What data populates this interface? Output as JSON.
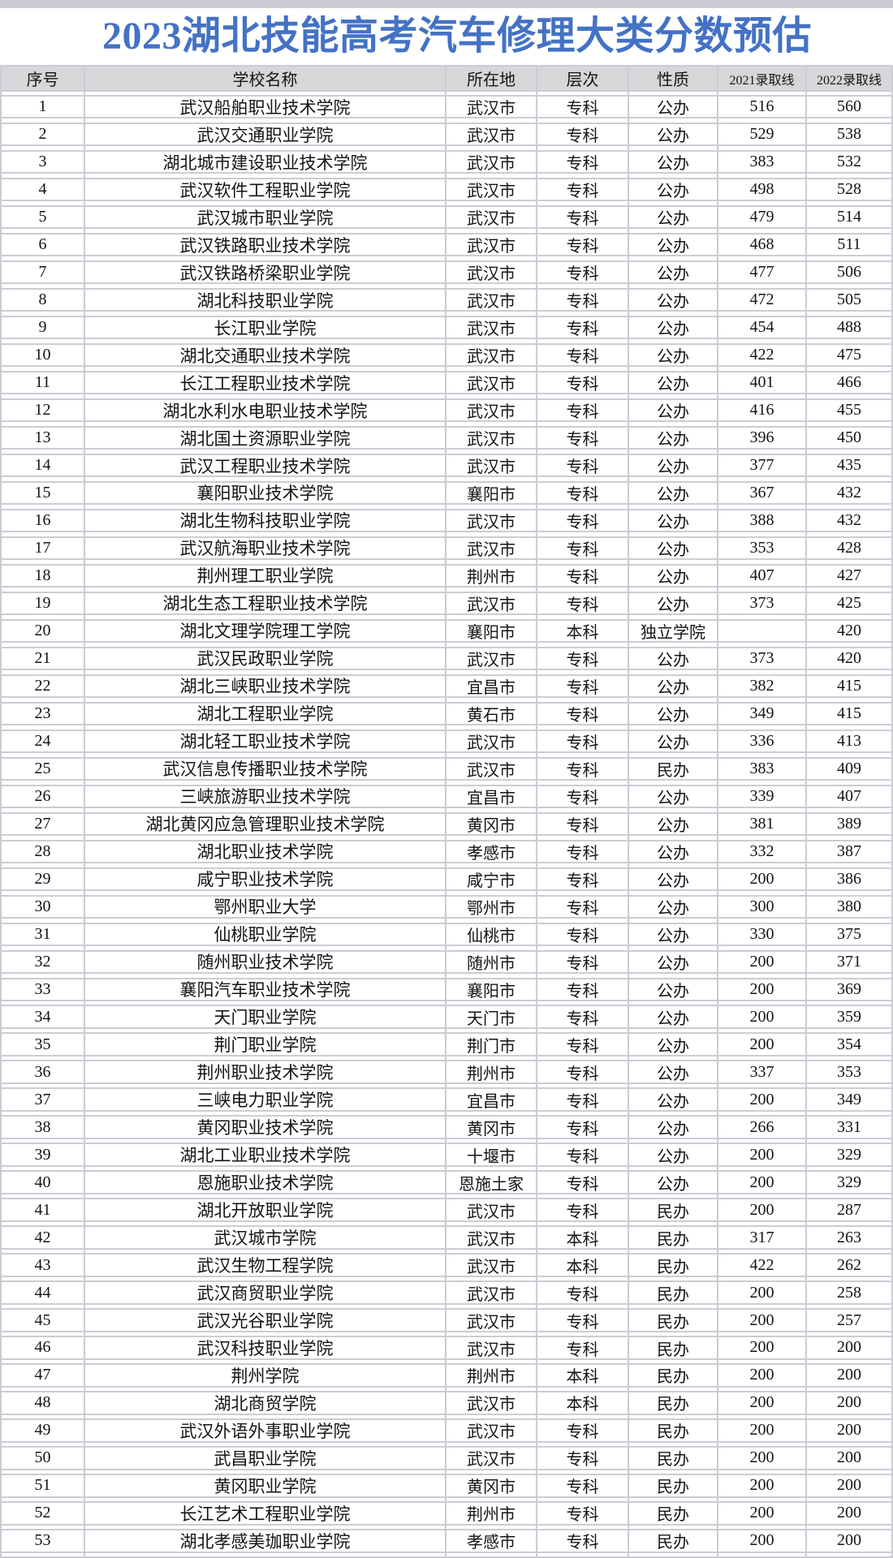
{
  "title": "2023湖北技能高考汽车修理大类分数预估",
  "colors": {
    "title_blue": "#4472c4",
    "header_bg": "#d7d7da",
    "grid_line": "#ccccd4"
  },
  "chart_data": {
    "type": "table",
    "title": "2023湖北技能高考汽车修理大类分数预估",
    "columns": [
      "序号",
      "学校名称",
      "所在地",
      "层次",
      "性质",
      "2021录取线",
      "2022录取线"
    ],
    "rows": [
      [
        "1",
        "武汉船舶职业技术学院",
        "武汉市",
        "专科",
        "公办",
        "516",
        "560"
      ],
      [
        "2",
        "武汉交通职业学院",
        "武汉市",
        "专科",
        "公办",
        "529",
        "538"
      ],
      [
        "3",
        "湖北城市建设职业技术学院",
        "武汉市",
        "专科",
        "公办",
        "383",
        "532"
      ],
      [
        "4",
        "武汉软件工程职业学院",
        "武汉市",
        "专科",
        "公办",
        "498",
        "528"
      ],
      [
        "5",
        "武汉城市职业学院",
        "武汉市",
        "专科",
        "公办",
        "479",
        "514"
      ],
      [
        "6",
        "武汉铁路职业技术学院",
        "武汉市",
        "专科",
        "公办",
        "468",
        "511"
      ],
      [
        "7",
        "武汉铁路桥梁职业学院",
        "武汉市",
        "专科",
        "公办",
        "477",
        "506"
      ],
      [
        "8",
        "湖北科技职业学院",
        "武汉市",
        "专科",
        "公办",
        "472",
        "505"
      ],
      [
        "9",
        "长江职业学院",
        "武汉市",
        "专科",
        "公办",
        "454",
        "488"
      ],
      [
        "10",
        "湖北交通职业技术学院",
        "武汉市",
        "专科",
        "公办",
        "422",
        "475"
      ],
      [
        "11",
        "长江工程职业技术学院",
        "武汉市",
        "专科",
        "公办",
        "401",
        "466"
      ],
      [
        "12",
        "湖北水利水电职业技术学院",
        "武汉市",
        "专科",
        "公办",
        "416",
        "455"
      ],
      [
        "13",
        "湖北国土资源职业学院",
        "武汉市",
        "专科",
        "公办",
        "396",
        "450"
      ],
      [
        "14",
        "武汉工程职业技术学院",
        "武汉市",
        "专科",
        "公办",
        "377",
        "435"
      ],
      [
        "15",
        "襄阳职业技术学院",
        "襄阳市",
        "专科",
        "公办",
        "367",
        "432"
      ],
      [
        "16",
        "湖北生物科技职业学院",
        "武汉市",
        "专科",
        "公办",
        "388",
        "432"
      ],
      [
        "17",
        "武汉航海职业技术学院",
        "武汉市",
        "专科",
        "公办",
        "353",
        "428"
      ],
      [
        "18",
        "荆州理工职业学院",
        "荆州市",
        "专科",
        "公办",
        "407",
        "427"
      ],
      [
        "19",
        "湖北生态工程职业技术学院",
        "武汉市",
        "专科",
        "公办",
        "373",
        "425"
      ],
      [
        "20",
        "湖北文理学院理工学院",
        "襄阳市",
        "本科",
        "独立学院",
        "",
        "420"
      ],
      [
        "21",
        "武汉民政职业学院",
        "武汉市",
        "专科",
        "公办",
        "373",
        "420"
      ],
      [
        "22",
        "湖北三峡职业技术学院",
        "宜昌市",
        "专科",
        "公办",
        "382",
        "415"
      ],
      [
        "23",
        "湖北工程职业学院",
        "黄石市",
        "专科",
        "公办",
        "349",
        "415"
      ],
      [
        "24",
        "湖北轻工职业技术学院",
        "武汉市",
        "专科",
        "公办",
        "336",
        "413"
      ],
      [
        "25",
        "武汉信息传播职业技术学院",
        "武汉市",
        "专科",
        "民办",
        "383",
        "409"
      ],
      [
        "26",
        "三峡旅游职业技术学院",
        "宜昌市",
        "专科",
        "公办",
        "339",
        "407"
      ],
      [
        "27",
        "湖北黄冈应急管理职业技术学院",
        "黄冈市",
        "专科",
        "公办",
        "381",
        "389"
      ],
      [
        "28",
        "湖北职业技术学院",
        "孝感市",
        "专科",
        "公办",
        "332",
        "387"
      ],
      [
        "29",
        "咸宁职业技术学院",
        "咸宁市",
        "专科",
        "公办",
        "200",
        "386"
      ],
      [
        "30",
        "鄂州职业大学",
        "鄂州市",
        "专科",
        "公办",
        "300",
        "380"
      ],
      [
        "31",
        "仙桃职业学院",
        "仙桃市",
        "专科",
        "公办",
        "330",
        "375"
      ],
      [
        "32",
        "随州职业技术学院",
        "随州市",
        "专科",
        "公办",
        "200",
        "371"
      ],
      [
        "33",
        "襄阳汽车职业技术学院",
        "襄阳市",
        "专科",
        "公办",
        "200",
        "369"
      ],
      [
        "34",
        "天门职业学院",
        "天门市",
        "专科",
        "公办",
        "200",
        "359"
      ],
      [
        "35",
        "荆门职业学院",
        "荆门市",
        "专科",
        "公办",
        "200",
        "354"
      ],
      [
        "36",
        "荆州职业技术学院",
        "荆州市",
        "专科",
        "公办",
        "337",
        "353"
      ],
      [
        "37",
        "三峡电力职业学院",
        "宜昌市",
        "专科",
        "公办",
        "200",
        "349"
      ],
      [
        "38",
        "黄冈职业技术学院",
        "黄冈市",
        "专科",
        "公办",
        "266",
        "331"
      ],
      [
        "39",
        "湖北工业职业技术学院",
        "十堰市",
        "专科",
        "公办",
        "200",
        "329"
      ],
      [
        "40",
        "恩施职业技术学院",
        "恩施土家",
        "专科",
        "公办",
        "200",
        "329"
      ],
      [
        "41",
        "湖北开放职业学院",
        "武汉市",
        "专科",
        "民办",
        "200",
        "287"
      ],
      [
        "42",
        "武汉城市学院",
        "武汉市",
        "本科",
        "民办",
        "317",
        "263"
      ],
      [
        "43",
        "武汉生物工程学院",
        "武汉市",
        "本科",
        "民办",
        "422",
        "262"
      ],
      [
        "44",
        "武汉商贸职业学院",
        "武汉市",
        "专科",
        "民办",
        "200",
        "258"
      ],
      [
        "45",
        "武汉光谷职业学院",
        "武汉市",
        "专科",
        "民办",
        "200",
        "257"
      ],
      [
        "46",
        "武汉科技职业学院",
        "武汉市",
        "专科",
        "民办",
        "200",
        "200"
      ],
      [
        "47",
        "荆州学院",
        "荆州市",
        "本科",
        "民办",
        "200",
        "200"
      ],
      [
        "48",
        "湖北商贸学院",
        "武汉市",
        "本科",
        "民办",
        "200",
        "200"
      ],
      [
        "49",
        "武汉外语外事职业学院",
        "武汉市",
        "专科",
        "民办",
        "200",
        "200"
      ],
      [
        "50",
        "武昌职业学院",
        "武汉市",
        "专科",
        "民办",
        "200",
        "200"
      ],
      [
        "51",
        "黄冈职业学院",
        "黄冈市",
        "专科",
        "民办",
        "200",
        "200"
      ],
      [
        "52",
        "长江艺术工程职业学院",
        "荆州市",
        "专科",
        "民办",
        "200",
        "200"
      ],
      [
        "53",
        "湖北孝感美珈职业学院",
        "孝感市",
        "专科",
        "民办",
        "200",
        "200"
      ]
    ]
  }
}
